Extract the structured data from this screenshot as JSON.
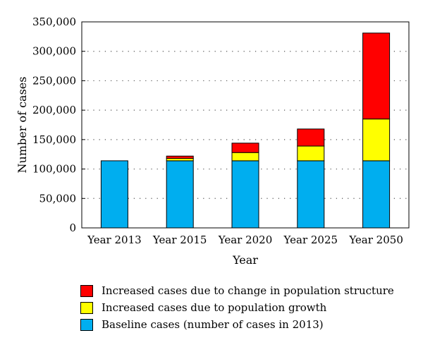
{
  "chart_data": {
    "type": "bar",
    "stacked": true,
    "categories": [
      "Year 2013",
      "Year 2015",
      "Year 2020",
      "Year 2025",
      "Year 2050"
    ],
    "series": [
      {
        "name": "Baseline cases (number of cases in 2013)",
        "color": "#00aeef",
        "values": [
          114000,
          114000,
          114000,
          114000,
          114000
        ]
      },
      {
        "name": "Increased cases due to population growth",
        "color": "#ffff00",
        "values": [
          0,
          4000,
          14000,
          25000,
          71000
        ]
      },
      {
        "name": "Increased cases due to change in population structure",
        "color": "#ff0000",
        "values": [
          0,
          4000,
          16000,
          29000,
          146000
        ]
      }
    ],
    "xlabel": "Year",
    "ylabel": "Number of cases",
    "ylim": [
      0,
      350000
    ],
    "yticks": [
      0,
      50000,
      100000,
      150000,
      200000,
      250000,
      300000,
      350000
    ],
    "ytick_labels": [
      "0",
      "50,000",
      "100,000",
      "150,000",
      "200,000",
      "250,000",
      "300,000",
      "350,000"
    ],
    "grid": "dotted horizontal",
    "legend": {
      "placement": "bottom",
      "order": [
        2,
        1,
        0
      ]
    }
  }
}
